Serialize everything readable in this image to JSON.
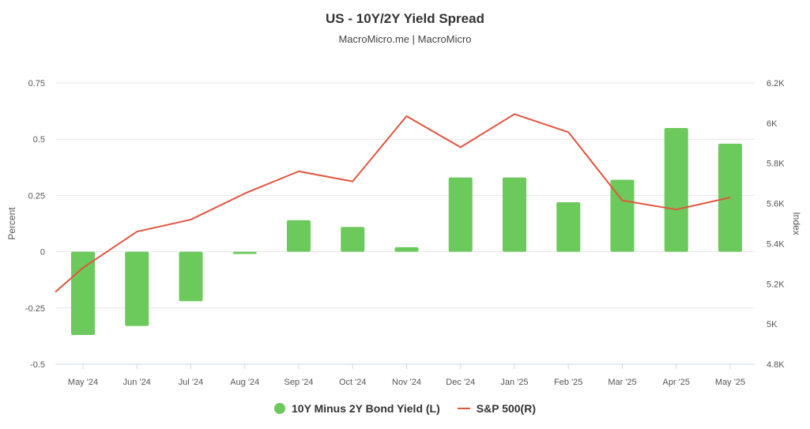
{
  "chart_data": {
    "type": "bar+line",
    "title": "US - 10Y/2Y Yield Spread",
    "subtitle": "MacroMicro.me | MacroMicro",
    "categories": [
      "May '24",
      "Jun '24",
      "Jul '24",
      "Aug '24",
      "Sep '24",
      "Oct '24",
      "Nov '24",
      "Dec '24",
      "Jan '25",
      "Feb '25",
      "Mar '25",
      "Apr '25",
      "May '25"
    ],
    "left_axis": {
      "label": "Percent",
      "ticks": [
        "0.75",
        "0.5",
        "0.25",
        "0",
        "-0.25",
        "-0.5"
      ],
      "tick_values": [
        0.75,
        0.5,
        0.25,
        0,
        -0.25,
        -0.5
      ],
      "range": [
        -0.5,
        0.75
      ]
    },
    "right_axis": {
      "label": "Index",
      "ticks": [
        "6.2K",
        "6K",
        "5.8K",
        "5.6K",
        "5.4K",
        "5.2K",
        "5K",
        "4.8K"
      ],
      "tick_values": [
        6200,
        6000,
        5800,
        5600,
        5400,
        5200,
        5000,
        4800
      ],
      "range": [
        4800,
        6200
      ]
    },
    "series": [
      {
        "name": "10Y Minus 2Y Bond Yield (L)",
        "type": "bar",
        "axis": "left",
        "color": "#6cc95c",
        "values": [
          -0.37,
          -0.33,
          -0.22,
          -0.01,
          0.14,
          0.11,
          0.02,
          0.33,
          0.33,
          0.22,
          0.32,
          0.55,
          0.48
        ]
      },
      {
        "name": "S&P 500(R)",
        "type": "line",
        "axis": "right",
        "color": "#e0553f",
        "start_value": 5160,
        "values": [
          5280,
          5460,
          5520,
          5650,
          5760,
          5710,
          6035,
          5880,
          6045,
          5955,
          5615,
          5570,
          5630
        ]
      }
    ],
    "legend": [
      "10Y Minus 2Y Bond Yield (L)",
      "S&P 500(R)"
    ],
    "legend_position": "bottom"
  }
}
